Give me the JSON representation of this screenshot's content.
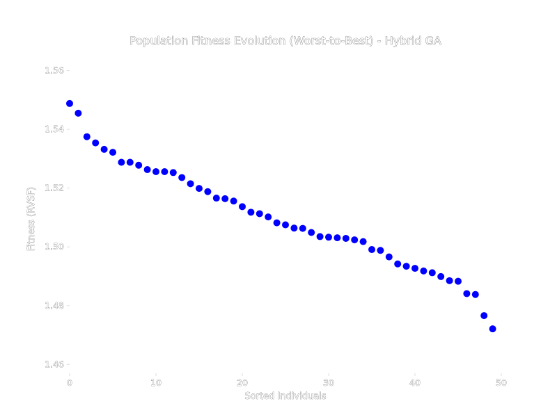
{
  "chart_data": {
    "type": "scatter",
    "title": "Population Fitness Evolution (Worst-to-Best) - Hybrid GA",
    "xlabel": "Sorted Individuals",
    "ylabel": "Fitness (RVSF)",
    "xlim": [
      0,
      50
    ],
    "ylim": [
      1.457,
      1.567
    ],
    "xticks": [
      0,
      10,
      20,
      30,
      40,
      50
    ],
    "xtick_labels": [
      "0",
      "10",
      "20",
      "30",
      "40",
      "50"
    ],
    "yticks": [
      1.46,
      1.48,
      1.5,
      1.52,
      1.54,
      1.56
    ],
    "ytick_labels": [
      "1.46",
      "1.48",
      "1.50",
      "1.52",
      "1.54",
      "1.56"
    ],
    "grid": false,
    "marker_color": "#0000ff",
    "series": [
      {
        "x": [
          0,
          1,
          2,
          3,
          4,
          5,
          6,
          7,
          8,
          9,
          10,
          11,
          12,
          13,
          14,
          15,
          16,
          17,
          18,
          19,
          20,
          21,
          22,
          23,
          24,
          25,
          26,
          27,
          28,
          29,
          30,
          31,
          32,
          33,
          34,
          35,
          36,
          37,
          38,
          39,
          40,
          41,
          42,
          43,
          44,
          45,
          46,
          47,
          48,
          49
        ],
        "values": [
          1.5488,
          1.5455,
          1.5375,
          1.5354,
          1.5332,
          1.5322,
          1.5288,
          1.5288,
          1.5278,
          1.5263,
          1.5256,
          1.5256,
          1.5253,
          1.5236,
          1.5215,
          1.5199,
          1.5188,
          1.5166,
          1.5164,
          1.5156,
          1.5137,
          1.5118,
          1.5113,
          1.5102,
          1.5082,
          1.5075,
          1.5064,
          1.5063,
          1.5049,
          1.5035,
          1.5033,
          1.5031,
          1.5029,
          1.5024,
          1.5018,
          1.4991,
          1.4988,
          1.4966,
          1.4942,
          1.4934,
          1.4927,
          1.4918,
          1.4912,
          1.4899,
          1.4885,
          1.4883,
          1.4841,
          1.4838,
          1.4766,
          1.4721
        ]
      }
    ]
  }
}
